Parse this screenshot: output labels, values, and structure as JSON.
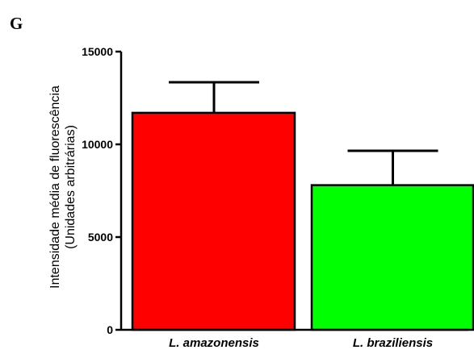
{
  "panel_label": "G",
  "chart_data": {
    "type": "bar",
    "categories": [
      "L. amazonensis",
      "L. braziliensis"
    ],
    "values": [
      11700,
      7800
    ],
    "errors": [
      1650,
      1850
    ],
    "colors": [
      "#ff0000",
      "#00ff00"
    ],
    "title": "",
    "xlabel": "",
    "ylabel_lines": [
      "Intensidade média de fluorescência",
      "(Unidades arbitrárias)"
    ],
    "ylim": [
      0,
      15000
    ],
    "yticks": [
      0,
      5000,
      10000,
      15000
    ],
    "grid": false,
    "legend": "none"
  }
}
